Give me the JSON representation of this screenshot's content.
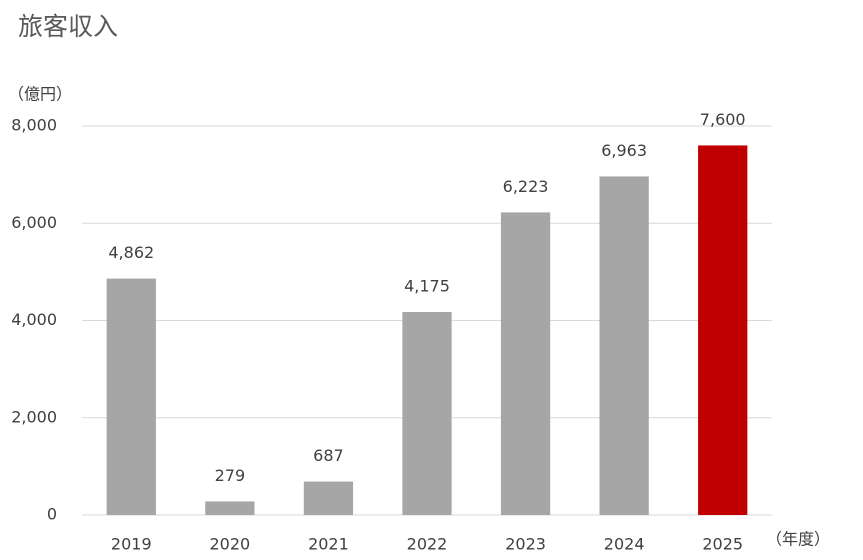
{
  "chart_data": {
    "type": "bar",
    "title": "旅客収入",
    "y_unit": "（億円）",
    "x_unit": "（年度）",
    "categories": [
      "2019",
      "2020",
      "2021",
      "2022",
      "2023",
      "2024",
      "2025"
    ],
    "values": [
      4862,
      279,
      687,
      4175,
      6223,
      6963,
      7600
    ],
    "value_labels": [
      "4,862",
      "279",
      "687",
      "4,175",
      "6,223",
      "6,963",
      "7,600"
    ],
    "colors": [
      "#a6a6a6",
      "#a6a6a6",
      "#a6a6a6",
      "#a6a6a6",
      "#a6a6a6",
      "#a6a6a6",
      "#c00000"
    ],
    "ylim": [
      0,
      8000
    ],
    "yticks": [
      0,
      {
        "value": 2000,
        "label": "2,000"
      },
      {
        "value": 4000,
        "label": "4,000"
      },
      {
        "value": 6000,
        "label": "6,000"
      },
      {
        "value": 8000,
        "label": "8,000"
      }
    ],
    "grid": true
  }
}
